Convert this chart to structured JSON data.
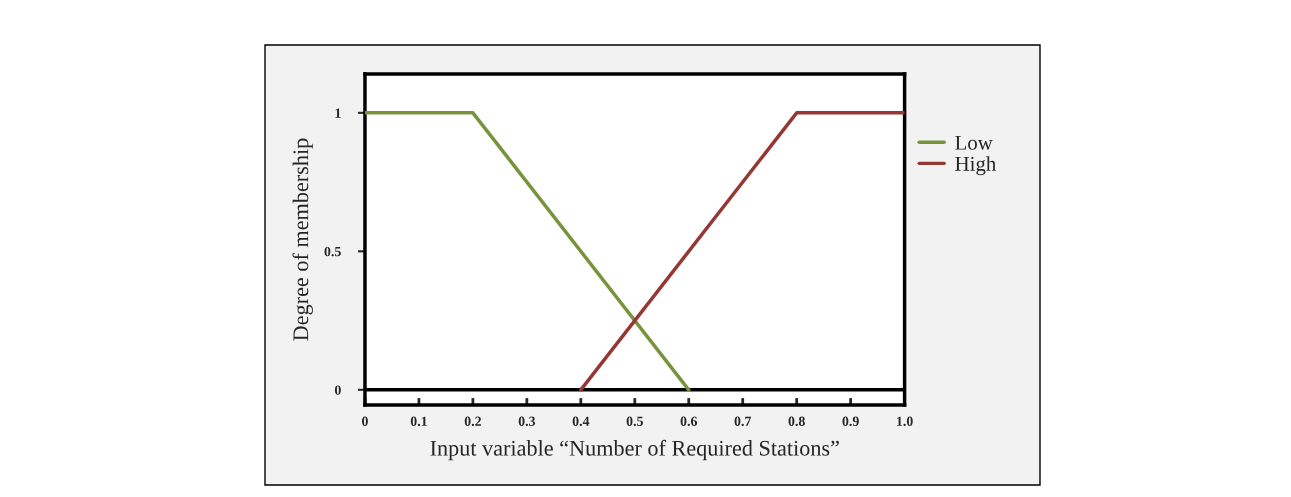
{
  "chart_data": {
    "type": "line",
    "xlabel": "Input variable “Number of Required Stations”",
    "ylabel": "Degree of membership",
    "xlim": [
      0,
      1.0
    ],
    "ylim": [
      -0.055,
      1.14
    ],
    "xticks": [
      0,
      0.1,
      0.2,
      0.3,
      0.4,
      0.5,
      0.6,
      0.7,
      0.8,
      0.9,
      {
        "value": 1.0,
        "label": "1.0"
      }
    ],
    "yticks": [
      0,
      0.5,
      1
    ],
    "series": [
      {
        "name": "Low",
        "color": "#77933c",
        "x": [
          0,
          0.2,
          0.6
        ],
        "values": [
          1,
          1,
          0
        ]
      },
      {
        "name": "High",
        "color": "#953735",
        "x": [
          0.4,
          0.8,
          1.0
        ],
        "values": [
          0,
          1,
          1
        ]
      }
    ],
    "ref_lines": [
      {
        "axis": "y",
        "value": 0,
        "color": "#000000"
      }
    ],
    "legend": "top right",
    "grid": false,
    "marker": "none",
    "line_style": "solid"
  }
}
